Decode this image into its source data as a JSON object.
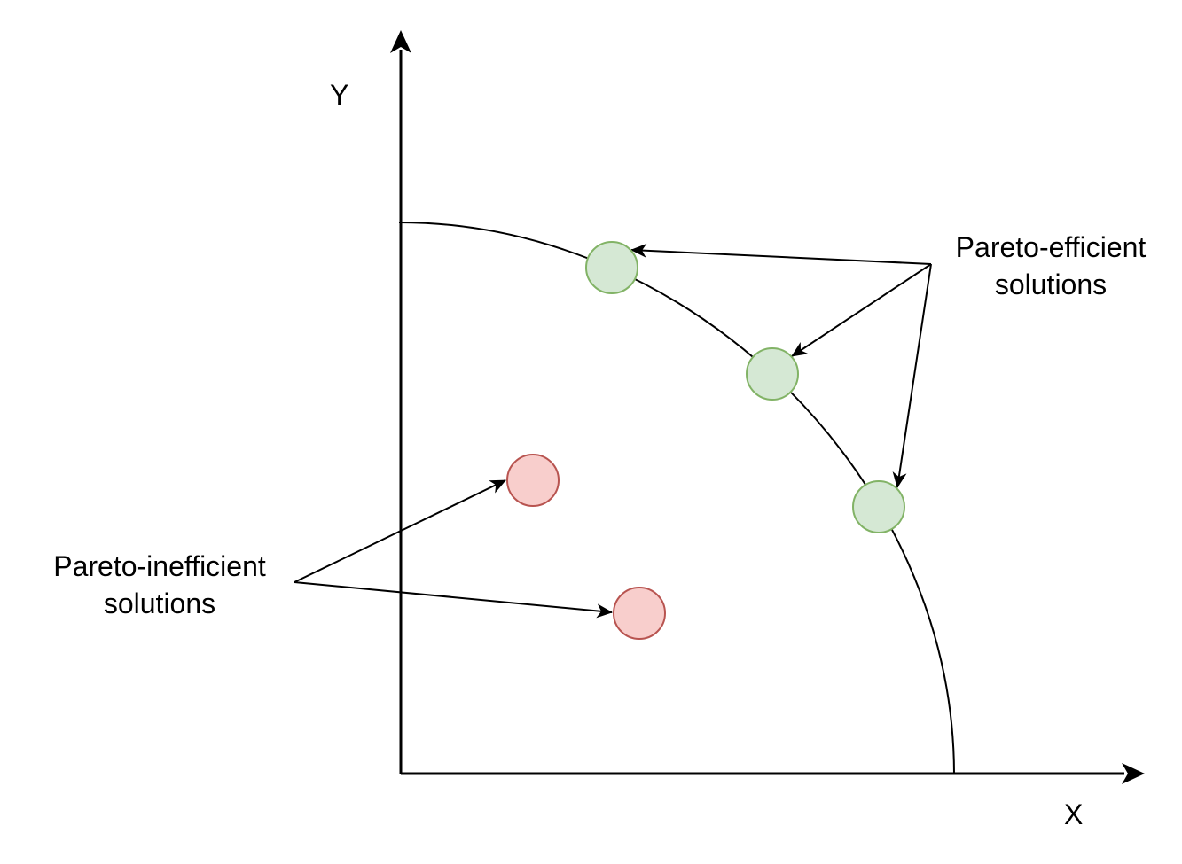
{
  "axes": {
    "x_label": "X",
    "y_label": "Y"
  },
  "labels": {
    "efficient": {
      "line1": "Pareto-efficient",
      "line2": "solutions"
    },
    "inefficient": {
      "line1": "Pareto-inefficient",
      "line2": "solutions"
    }
  },
  "colors": {
    "stroke": "#000000",
    "efficient_fill": "#d5e8d4",
    "efficient_stroke": "#82b366",
    "inefficient_fill": "#f8cecc",
    "inefficient_stroke": "#b85450"
  }
}
